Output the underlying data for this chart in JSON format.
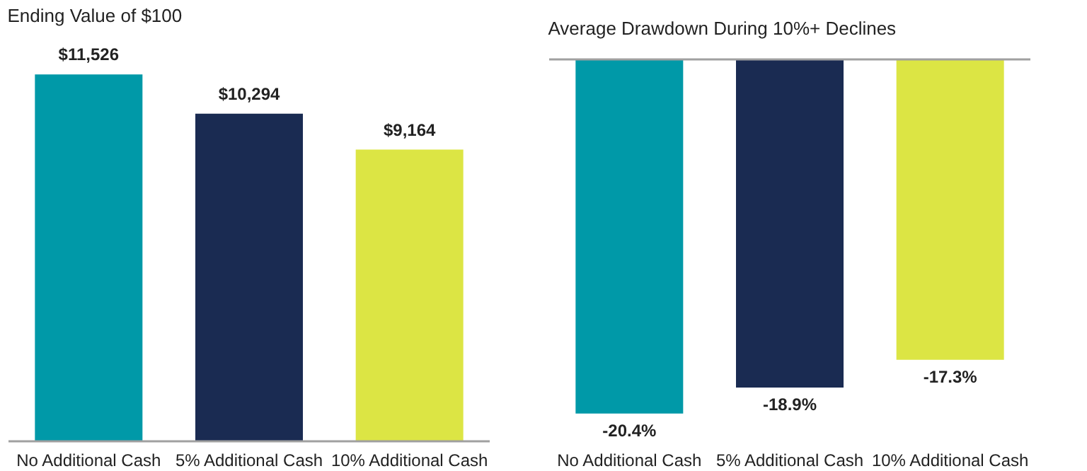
{
  "chart_data": [
    {
      "type": "bar",
      "title": "Ending Value of $100",
      "categories": [
        "No Additional Cash",
        "5% Additional Cash",
        "10% Additional Cash"
      ],
      "values": [
        11526,
        10294,
        9164
      ],
      "colors": [
        "#0099a8",
        "#1a2b52",
        "#dce544"
      ],
      "value_labels": [
        "$11,526",
        "$10,294",
        "$9,164"
      ]
    },
    {
      "type": "bar",
      "title": "Average Drawdown During 10%+ Declines",
      "categories": [
        "No Additional Cash",
        "5% Additional Cash",
        "10% Additional Cash"
      ],
      "values": [
        -20.4,
        -18.9,
        -17.3
      ],
      "colors": [
        "#0099a8",
        "#1a2b52",
        "#dce544"
      ],
      "value_labels": [
        "-20.4%",
        "-18.9%",
        "-17.3%"
      ]
    }
  ]
}
